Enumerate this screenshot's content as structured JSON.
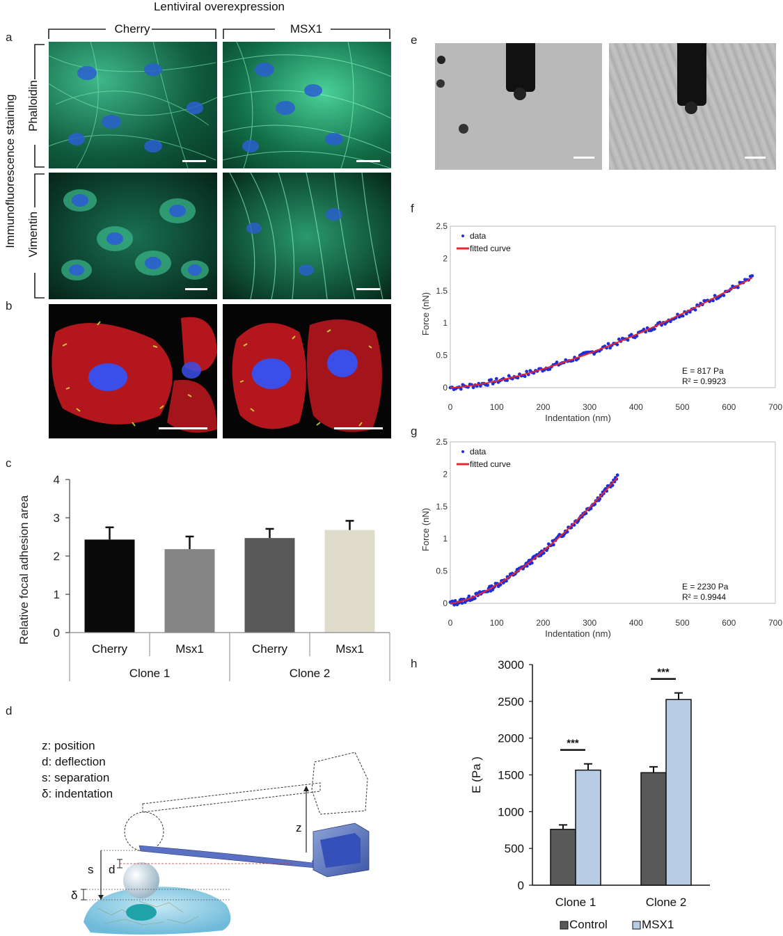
{
  "panels": {
    "a": "a",
    "b": "b",
    "c": "c",
    "d": "d",
    "e": "e",
    "f": "f",
    "g": "g",
    "h": "h"
  },
  "panel_a": {
    "title": "Lentiviral overexpression",
    "col_cherry": "Cherry",
    "col_msx1": "MSX1",
    "side_label": "Immunofluorescence staining",
    "row_phalloidin": "Phalloidin",
    "row_vimentin": "Vimentin"
  },
  "panel_d": {
    "legend": [
      "z: position",
      "d: deflection",
      "s: separation",
      "δ: indentation"
    ],
    "label_z": "z",
    "label_s": "s",
    "label_d": "d",
    "label_delta": "δ"
  },
  "colors": {
    "bar_black": "#0a0a0a",
    "bar_gray": "#858585",
    "bar_dark": "#595959",
    "bar_beige": "#e0dccb",
    "control": "#595959",
    "msx1": "#b8cce4",
    "fit": "#e8242c",
    "data": "#1f2fd6"
  },
  "chart_data": [
    {
      "id": "c",
      "type": "bar",
      "ylabel": "Relative focal adhesion area",
      "ylim": [
        0,
        4
      ],
      "yticks": [
        "0",
        "1",
        "2",
        "3",
        "4"
      ],
      "categories": [
        "Cherry",
        "Msx1",
        "Cherry",
        "Msx1"
      ],
      "groups": [
        "Clone 1",
        "Clone 2"
      ],
      "values": [
        2.43,
        2.18,
        2.47,
        2.68
      ],
      "errors": [
        0.32,
        0.33,
        0.24,
        0.24
      ]
    },
    {
      "id": "f",
      "type": "scatter",
      "xlabel": "Indentation (nm)",
      "ylabel": "Force (nN)",
      "xlim": [
        0,
        700
      ],
      "ylim": [
        0,
        2.5
      ],
      "xticks": [
        "0",
        "100",
        "200",
        "300",
        "400",
        "500",
        "600",
        "700"
      ],
      "yticks": [
        "0",
        "0.5",
        "1",
        "1.5",
        "2",
        "2.5"
      ],
      "legend": [
        "data",
        "fitted curve"
      ],
      "annotation": [
        "E = 817 Pa",
        "R² = 0.9923"
      ],
      "x_max": 650,
      "y_at_max": 1.7,
      "curve_exponent": 1.5
    },
    {
      "id": "g",
      "type": "scatter",
      "xlabel": "Indentation (nm)",
      "ylabel": "Force (nN)",
      "xlim": [
        0,
        700
      ],
      "ylim": [
        0,
        2.5
      ],
      "xticks": [
        "0",
        "100",
        "200",
        "300",
        "400",
        "500",
        "600",
        "700"
      ],
      "yticks": [
        "0",
        "0.5",
        "1",
        "1.5",
        "2",
        "2.5"
      ],
      "legend": [
        "data",
        "fitted curve"
      ],
      "annotation": [
        "E = 2230 Pa",
        "R² = 0.9944"
      ],
      "x_max": 360,
      "y_at_max": 1.95,
      "curve_exponent": 1.5
    },
    {
      "id": "h",
      "type": "bar",
      "ylabel": "E (Pa )",
      "ylim": [
        0,
        3000
      ],
      "yticks": [
        "0",
        "500",
        "1000",
        "1500",
        "2000",
        "2500",
        "3000"
      ],
      "categories": [
        "Clone 1",
        "Clone 2"
      ],
      "series": [
        {
          "name": "Control",
          "values": [
            760,
            1530
          ],
          "errors": [
            60,
            80
          ]
        },
        {
          "name": "MSX1",
          "values": [
            1565,
            2525
          ],
          "errors": [
            85,
            90
          ]
        }
      ],
      "significance": [
        "***",
        "***"
      ]
    }
  ]
}
